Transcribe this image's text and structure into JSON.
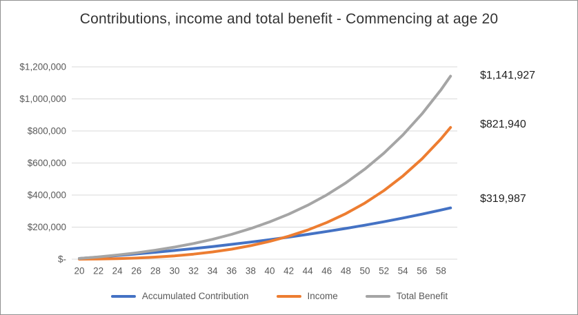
{
  "title": "Contributions, income and total benefit - Commencing at age 20",
  "chart_data": {
    "type": "line",
    "title": "Contributions, income and total benefit - Commencing at age 20",
    "x": [
      20,
      22,
      24,
      26,
      28,
      30,
      32,
      34,
      36,
      38,
      40,
      42,
      44,
      46,
      48,
      50,
      52,
      54,
      56,
      58,
      59
    ],
    "x_axis_tick_labels": [
      "20",
      "22",
      "24",
      "26",
      "28",
      "30",
      "32",
      "34",
      "36",
      "38",
      "40",
      "42",
      "44",
      "46",
      "48",
      "50",
      "52",
      "54",
      "56",
      "58"
    ],
    "y_axis_ticks": [
      {
        "label": "$1,200,000",
        "value": 1200000
      },
      {
        "label": "$1,000,000",
        "value": 1000000
      },
      {
        "label": "$800,000",
        "value": 800000
      },
      {
        "label": "$600,000",
        "value": 600000
      },
      {
        "label": "$400,000",
        "value": 400000
      },
      {
        "label": "$200,000",
        "value": 200000
      },
      {
        "label": "$-",
        "value": 0
      }
    ],
    "ylim": [
      0,
      1200000
    ],
    "grid": true,
    "legend_position": "bottom",
    "series": [
      {
        "name": "Accumulated Contribution",
        "color": "#4472C4",
        "end_label": "$319,987",
        "end_value": 319987,
        "values": [
          4200,
          13100,
          22500,
          32500,
          43100,
          54400,
          66300,
          78900,
          92400,
          106600,
          121700,
          137700,
          154700,
          172800,
          191900,
          212200,
          233700,
          256600,
          280800,
          306600,
          319987
        ]
      },
      {
        "name": "Income",
        "color": "#ED7D31",
        "end_label": "$821,940",
        "end_value": 821940,
        "values": [
          0,
          900,
          3100,
          6900,
          12700,
          20700,
          31300,
          45100,
          62500,
          84200,
          110800,
          143100,
          182100,
          228700,
          284300,
          350100,
          427800,
          519000,
          625900,
          750800,
          821940
        ]
      },
      {
        "name": "Total Benefit",
        "color": "#A5A5A5",
        "end_label": "$1,141,927",
        "end_value": 1141927,
        "values": [
          4200,
          14000,
          25600,
          39400,
          55800,
          75100,
          97600,
          124000,
          154900,
          190800,
          232500,
          280800,
          336800,
          401500,
          476200,
          562300,
          661500,
          775600,
          906700,
          1057400,
          1141927
        ]
      }
    ],
    "style": {
      "gridline_color": "#D9D9D9",
      "axis_text_color": "#595959",
      "title_color": "#333333",
      "data_label_color": "#1F1F1F",
      "line_width": 4
    }
  }
}
